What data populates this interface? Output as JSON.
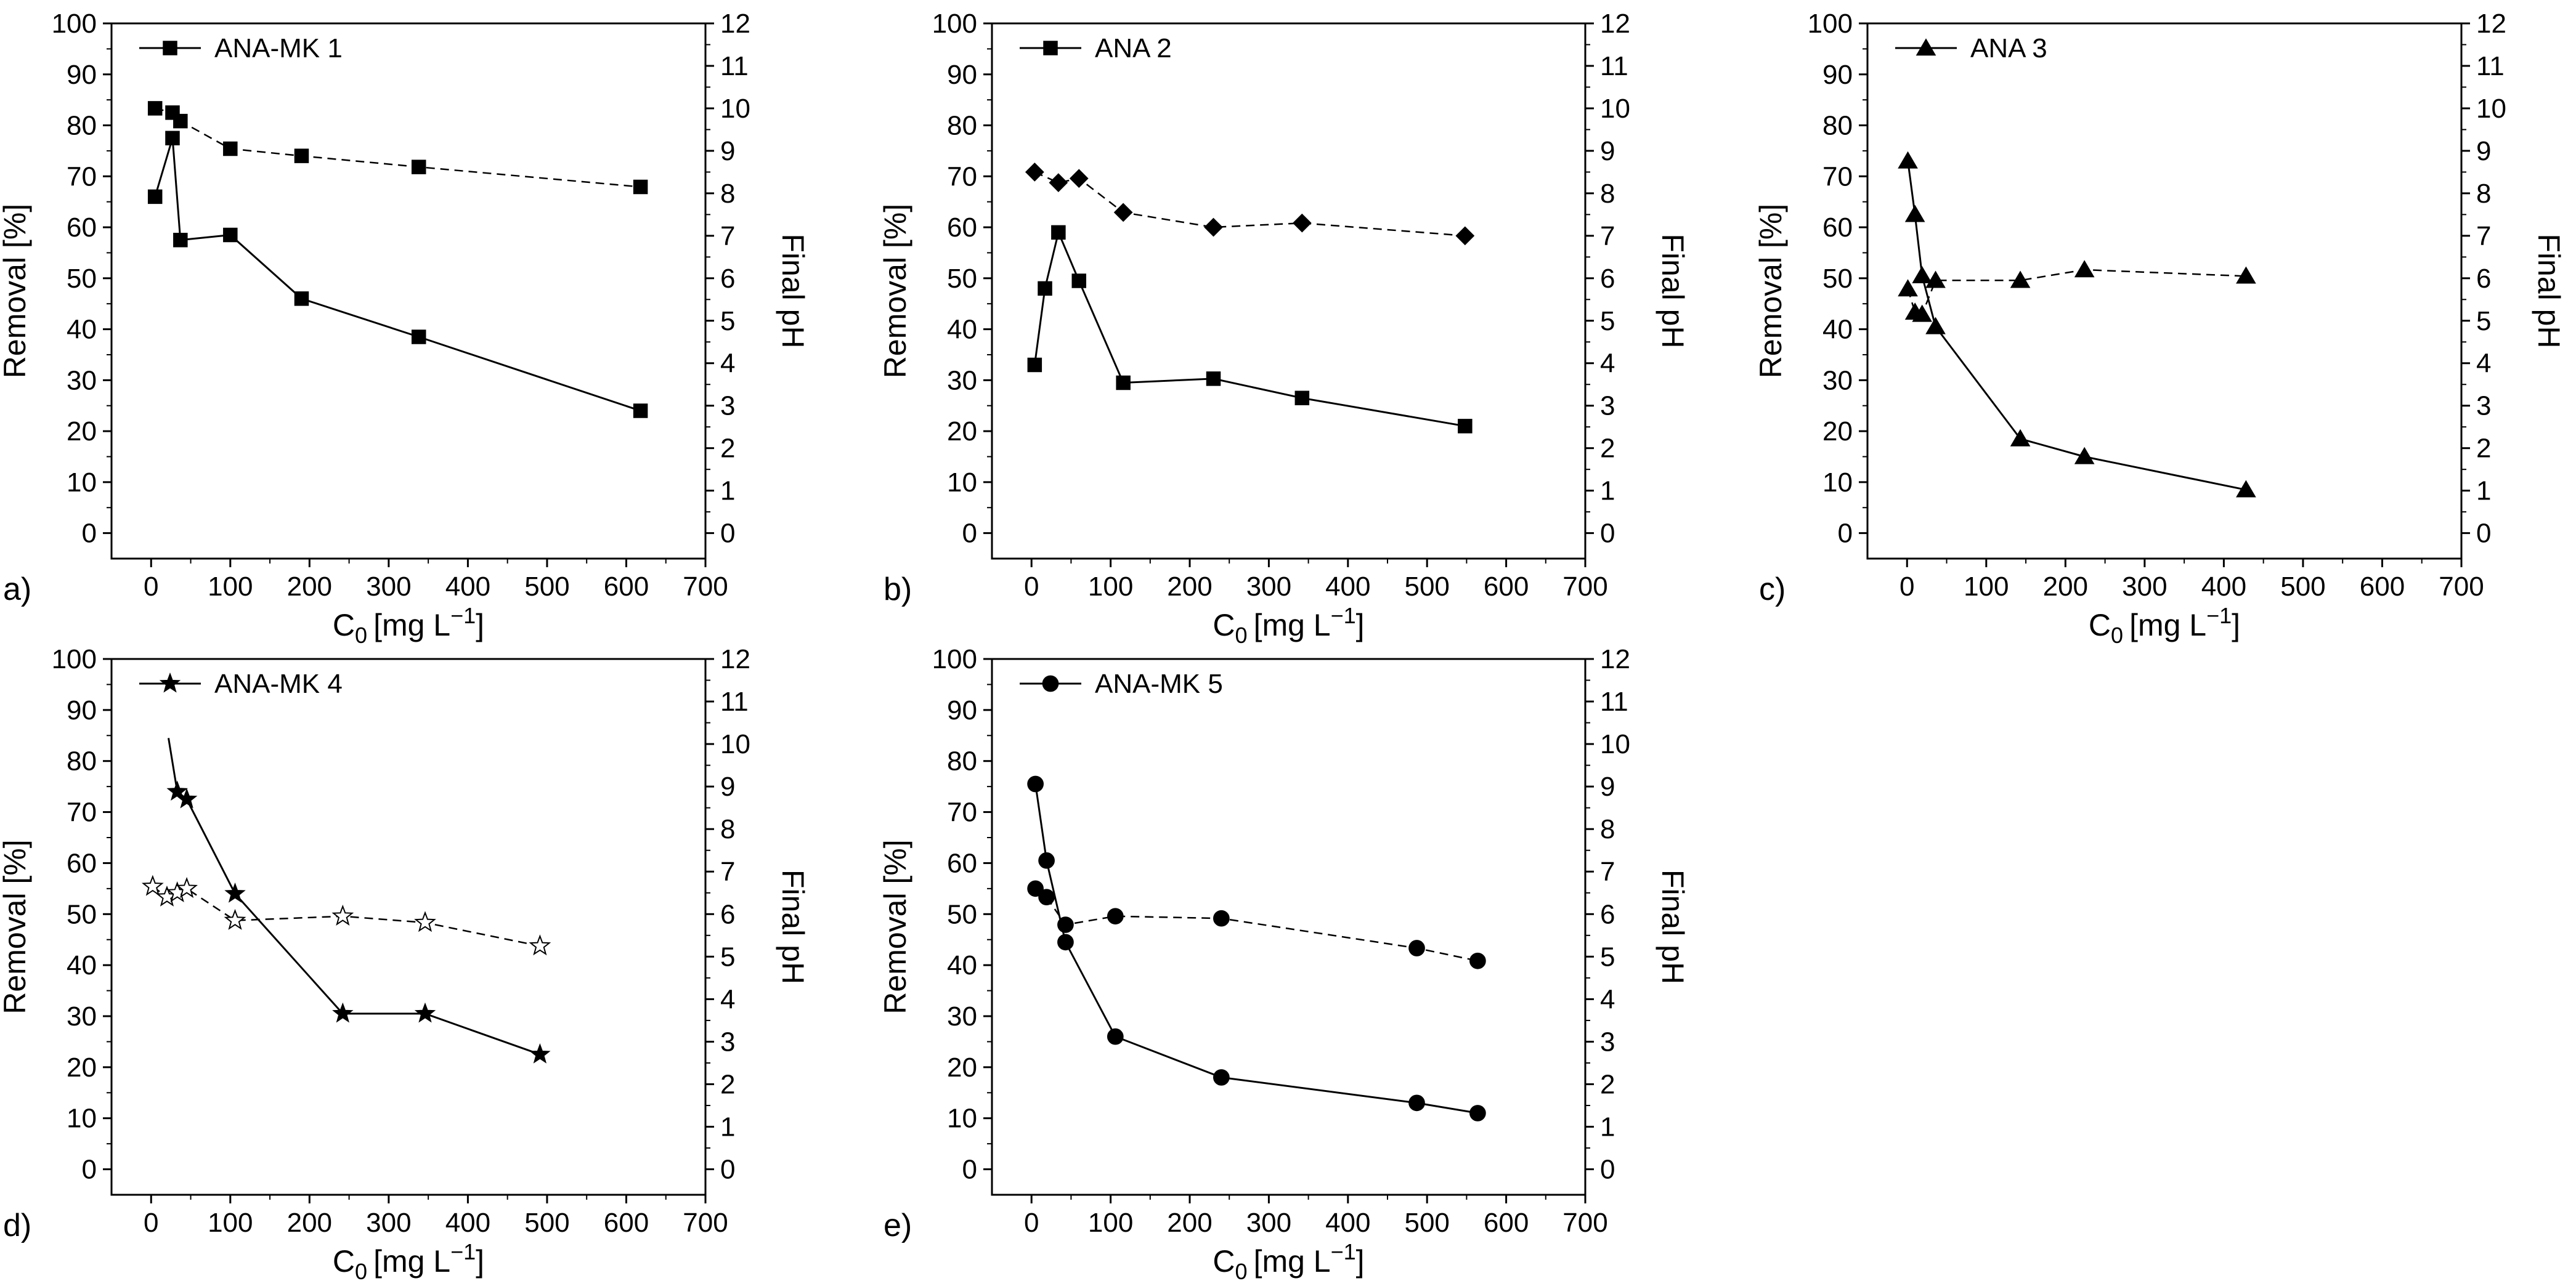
{
  "figure": {
    "common": {
      "x_axis_label": "C0 [mg L−1]",
      "x_axis_label_parts": {
        "base": "C",
        "sub": "0",
        "unit": "[mg L",
        "sup": "−1",
        "close": "]"
      },
      "y_left_label": "Removal [%]",
      "y_right_label": "Final pH",
      "xlim": [
        -50,
        700
      ],
      "xticks": [
        0,
        100,
        200,
        300,
        400,
        500,
        600,
        700
      ],
      "ylim_left": [
        -5,
        100
      ],
      "yticks_left": [
        0,
        10,
        20,
        30,
        40,
        50,
        60,
        70,
        80,
        90,
        100
      ],
      "ylim_right": [
        -0.6,
        12
      ],
      "yticks_right": [
        0,
        1,
        2,
        3,
        4,
        5,
        6,
        7,
        8,
        9,
        10,
        11,
        12
      ]
    }
  },
  "chart_data": [
    {
      "type": "line",
      "panel": "a)",
      "title": "",
      "legend": [
        "ANA-MK 1"
      ],
      "legend_location": "top-left",
      "xlabel": "C0 [mg L−1]",
      "ylabel": "Removal [%]",
      "y2label": "Final pH",
      "xlim": [
        -50,
        700
      ],
      "ylim": [
        -5,
        100
      ],
      "y2lim": [
        -0.6,
        12
      ],
      "series": [
        {
          "name": "ANA-MK 1 removal",
          "axis": "left",
          "line": "solid",
          "marker": "square",
          "fill": "filled",
          "x": [
            5,
            27,
            37,
            100,
            190,
            338,
            618
          ],
          "y": [
            66,
            77.5,
            57.5,
            58.5,
            46,
            38.5,
            24
          ]
        },
        {
          "name": "ANA-MK 1 final pH",
          "axis": "right",
          "line": "dashed",
          "marker": "square",
          "fill": "filled",
          "x": [
            5,
            27,
            37,
            100,
            190,
            338,
            618
          ],
          "y": [
            10.0,
            9.9,
            9.7,
            9.05,
            8.88,
            8.62,
            8.15
          ]
        }
      ]
    },
    {
      "type": "line",
      "panel": "b)",
      "title": "",
      "legend": [
        "ANA 2"
      ],
      "legend_location": "top-left",
      "xlabel": "C0 [mg L−1]",
      "ylabel": "Removal [%]",
      "y2label": "Final pH",
      "xlim": [
        -50,
        700
      ],
      "ylim": [
        -5,
        100
      ],
      "y2lim": [
        -0.6,
        12
      ],
      "series": [
        {
          "name": "ANA 2 removal",
          "axis": "left",
          "line": "solid",
          "marker": "square",
          "fill": "filled",
          "x": [
            4,
            17,
            34,
            60,
            116,
            230,
            342,
            548
          ],
          "y": [
            33,
            48,
            59,
            49.5,
            29.5,
            30.3,
            26.5,
            21
          ]
        },
        {
          "name": "ANA 2 final pH",
          "axis": "right",
          "line": "dashed",
          "marker": "diamond",
          "fill": "filled",
          "x": [
            4,
            34,
            60,
            116,
            230,
            342,
            548
          ],
          "y": [
            8.5,
            8.25,
            8.35,
            7.55,
            7.2,
            7.3,
            7.0
          ]
        }
      ]
    },
    {
      "type": "line",
      "panel": "c)",
      "title": "",
      "legend": [
        "ANA 3"
      ],
      "legend_location": "top-left",
      "xlabel": "C0 [mg L−1]",
      "ylabel": "Removal [%]",
      "y2label": "Final pH",
      "xlim": [
        -50,
        700
      ],
      "ylim": [
        -5,
        100
      ],
      "y2lim": [
        -0.6,
        12
      ],
      "series": [
        {
          "name": "ANA 3 removal",
          "axis": "left",
          "line": "solid",
          "marker": "triangle",
          "fill": "filled",
          "x": [
            1,
            10,
            19,
            36,
            143,
            224,
            428
          ],
          "y": [
            73,
            62.5,
            50.5,
            40.5,
            18.5,
            15,
            8.5
          ]
        },
        {
          "name": "ANA 3 final pH",
          "axis": "right",
          "line": "dashed",
          "marker": "triangle",
          "fill": "filled",
          "x": [
            1,
            10,
            19,
            36,
            143,
            224,
            428
          ],
          "y": [
            5.75,
            5.2,
            5.15,
            5.95,
            5.95,
            6.2,
            6.05
          ]
        }
      ]
    },
    {
      "type": "line",
      "panel": "d)",
      "title": "",
      "legend": [
        "ANA-MK 4"
      ],
      "legend_location": "top-left",
      "xlabel": "C0 [mg L−1]",
      "ylabel": "Removal [%]",
      "y2label": "Final pH",
      "xlim": [
        -50,
        700
      ],
      "ylim": [
        -5,
        100
      ],
      "y2lim": [
        -0.6,
        12
      ],
      "series": [
        {
          "name": "ANA-MK 4 removal",
          "axis": "left",
          "line": "solid",
          "marker": "star",
          "fill": "filled",
          "line_start": {
            "x": 22,
            "y": 84.5
          },
          "x": [
            33,
            45,
            106,
            242,
            346,
            491
          ],
          "y": [
            74,
            72.5,
            54,
            30.5,
            30.5,
            22.5
          ]
        },
        {
          "name": "ANA-MK 4 final pH",
          "axis": "right",
          "line": "dashed",
          "marker": "star",
          "fill": "open",
          "x": [
            2,
            20,
            33,
            45,
            106,
            242,
            346,
            491
          ],
          "y": [
            6.65,
            6.4,
            6.5,
            6.6,
            5.85,
            5.95,
            5.8,
            5.25
          ]
        }
      ]
    },
    {
      "type": "line",
      "panel": "e)",
      "title": "",
      "legend": [
        "ANA-MK 5"
      ],
      "legend_location": "top-left",
      "xlabel": "C0 [mg L−1]",
      "ylabel": "Removal [%]",
      "y2label": "Final pH",
      "xlim": [
        -50,
        700
      ],
      "ylim": [
        -5,
        100
      ],
      "y2lim": [
        -0.6,
        12
      ],
      "series": [
        {
          "name": "ANA-MK 5 removal",
          "axis": "left",
          "line": "solid",
          "marker": "circle",
          "fill": "filled",
          "x": [
            5,
            19,
            43,
            106,
            240,
            487,
            564
          ],
          "y": [
            75.5,
            60.5,
            44.5,
            26,
            18,
            13,
            11
          ]
        },
        {
          "name": "ANA-MK 5 final pH",
          "axis": "right",
          "line": "dashed",
          "marker": "circle",
          "fill": "filled",
          "x": [
            5,
            19,
            43,
            106,
            240,
            487,
            564
          ],
          "y": [
            6.6,
            6.4,
            5.75,
            5.95,
            5.9,
            5.2,
            4.9
          ]
        }
      ]
    }
  ]
}
